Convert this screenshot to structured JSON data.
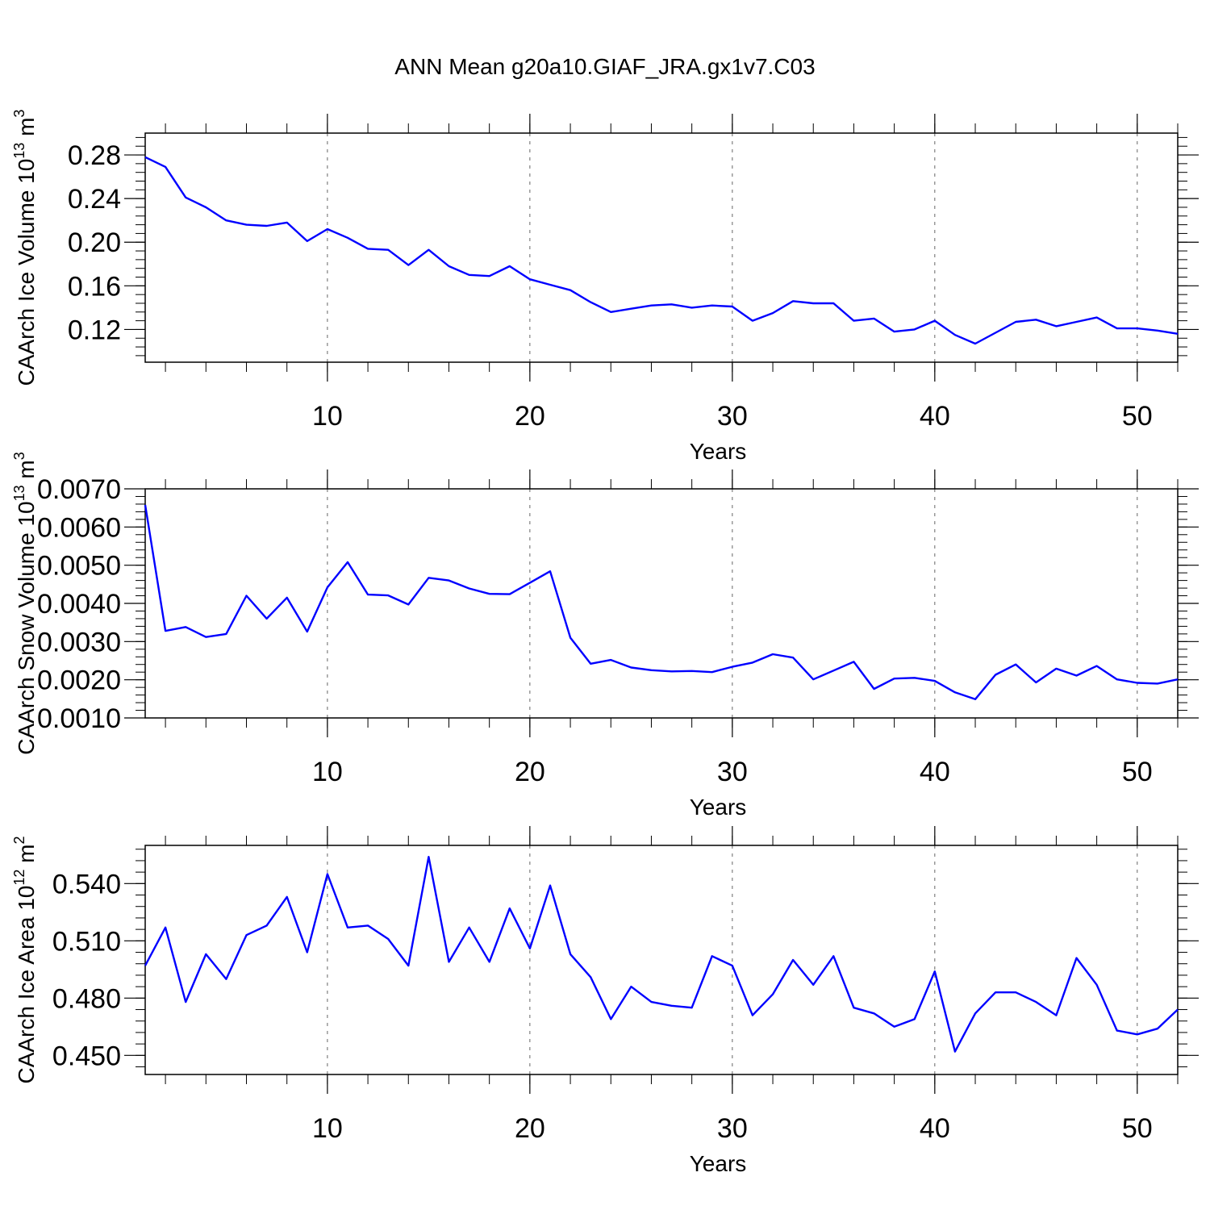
{
  "title": "ANN Mean g20a10.GIAF_JRA.gx1v7.C03",
  "colors": {
    "line": "#0000ff",
    "axis": "#000000",
    "grid": "#666666"
  },
  "chart_data": [
    {
      "type": "line",
      "xlabel": "Years",
      "ylabel": "CAArch Ice Volume 10",
      "ylabel_sup": "13",
      "ylabel_unit": "m",
      "ylabel_unit_sup": "3",
      "xlim": [
        1,
        52
      ],
      "ylim": [
        0.09,
        0.3
      ],
      "xticks": [
        10,
        20,
        30,
        40,
        50
      ],
      "xtick_labels": [
        "10",
        "20",
        "30",
        "40",
        "50"
      ],
      "yticks": [
        0.12,
        0.16,
        0.2,
        0.24,
        0.28
      ],
      "ytick_labels": [
        "0.12",
        "0.16",
        "0.20",
        "0.24",
        "0.28"
      ],
      "grid": "vertical dashed at major x ticks",
      "x": [
        1,
        2,
        3,
        4,
        5,
        6,
        7,
        8,
        9,
        10,
        11,
        12,
        13,
        14,
        15,
        16,
        17,
        18,
        19,
        20,
        21,
        22,
        23,
        24,
        25,
        26,
        27,
        28,
        29,
        30,
        31,
        32,
        33,
        34,
        35,
        36,
        37,
        38,
        39,
        40,
        41,
        42,
        43,
        44,
        45,
        46,
        47,
        48,
        49,
        50,
        51,
        52
      ],
      "values": [
        0.278,
        0.269,
        0.241,
        0.232,
        0.22,
        0.216,
        0.215,
        0.218,
        0.201,
        0.212,
        0.204,
        0.194,
        0.193,
        0.179,
        0.193,
        0.178,
        0.17,
        0.169,
        0.178,
        0.166,
        0.161,
        0.156,
        0.145,
        0.136,
        0.139,
        0.142,
        0.143,
        0.14,
        0.142,
        0.141,
        0.128,
        0.135,
        0.146,
        0.144,
        0.144,
        0.128,
        0.13,
        0.118,
        0.12,
        0.128,
        0.115,
        0.107,
        0.117,
        0.127,
        0.129,
        0.123,
        0.127,
        0.131,
        0.121,
        0.121,
        0.119,
        0.116
      ]
    },
    {
      "type": "line",
      "xlabel": "Years",
      "ylabel": "CAArch Snow Volume 10",
      "ylabel_sup": "13",
      "ylabel_unit": "m",
      "ylabel_unit_sup": "3",
      "xlim": [
        1,
        52
      ],
      "ylim": [
        0.001,
        0.007
      ],
      "xticks": [
        10,
        20,
        30,
        40,
        50
      ],
      "xtick_labels": [
        "10",
        "20",
        "30",
        "40",
        "50"
      ],
      "yticks": [
        0.001,
        0.002,
        0.003,
        0.004,
        0.005,
        0.006,
        0.007
      ],
      "ytick_labels": [
        "0.0010",
        "0.0020",
        "0.0030",
        "0.0040",
        "0.0050",
        "0.0060",
        "0.0070"
      ],
      "grid": "vertical dashed at major x ticks",
      "x": [
        1,
        2,
        3,
        4,
        5,
        6,
        7,
        8,
        9,
        10,
        11,
        12,
        13,
        14,
        15,
        16,
        17,
        18,
        19,
        20,
        21,
        22,
        23,
        24,
        25,
        26,
        27,
        28,
        29,
        30,
        31,
        32,
        33,
        34,
        35,
        36,
        37,
        38,
        39,
        40,
        41,
        42,
        43,
        44,
        45,
        46,
        47,
        48,
        49,
        50,
        51,
        52
      ],
      "values": [
        0.00658,
        0.00328,
        0.00338,
        0.00312,
        0.0032,
        0.0042,
        0.0036,
        0.00415,
        0.00326,
        0.00442,
        0.00508,
        0.00423,
        0.00421,
        0.00397,
        0.00467,
        0.0046,
        0.00439,
        0.00425,
        0.00424,
        0.00454,
        0.00484,
        0.0031,
        0.00242,
        0.00252,
        0.00232,
        0.00225,
        0.00222,
        0.00223,
        0.0022,
        0.00234,
        0.00245,
        0.00267,
        0.00258,
        0.00201,
        0.00224,
        0.00247,
        0.00176,
        0.00203,
        0.00205,
        0.00197,
        0.00167,
        0.00149,
        0.00213,
        0.0024,
        0.00193,
        0.00229,
        0.00211,
        0.00236,
        0.00201,
        0.00192,
        0.0019,
        0.00201
      ]
    },
    {
      "type": "line",
      "xlabel": "Years",
      "ylabel": "CAArch Ice Area 10",
      "ylabel_sup": "12",
      "ylabel_unit": "m",
      "ylabel_unit_sup": "2",
      "xlim": [
        1,
        52
      ],
      "ylim": [
        0.44,
        0.56
      ],
      "xticks": [
        10,
        20,
        30,
        40,
        50
      ],
      "xtick_labels": [
        "10",
        "20",
        "30",
        "40",
        "50"
      ],
      "yticks": [
        0.45,
        0.48,
        0.51,
        0.54
      ],
      "ytick_labels": [
        "0.450",
        "0.480",
        "0.510",
        "0.540"
      ],
      "grid": "vertical dashed at major x ticks",
      "x": [
        1,
        2,
        3,
        4,
        5,
        6,
        7,
        8,
        9,
        10,
        11,
        12,
        13,
        14,
        15,
        16,
        17,
        18,
        19,
        20,
        21,
        22,
        23,
        24,
        25,
        26,
        27,
        28,
        29,
        30,
        31,
        32,
        33,
        34,
        35,
        36,
        37,
        38,
        39,
        40,
        41,
        42,
        43,
        44,
        45,
        46,
        47,
        48,
        49,
        50,
        51,
        52
      ],
      "values": [
        0.497,
        0.517,
        0.478,
        0.503,
        0.49,
        0.513,
        0.518,
        0.533,
        0.504,
        0.545,
        0.517,
        0.518,
        0.511,
        0.497,
        0.554,
        0.499,
        0.517,
        0.499,
        0.527,
        0.506,
        0.539,
        0.503,
        0.491,
        0.469,
        0.486,
        0.478,
        0.476,
        0.475,
        0.502,
        0.497,
        0.471,
        0.482,
        0.5,
        0.487,
        0.502,
        0.475,
        0.472,
        0.465,
        0.469,
        0.494,
        0.452,
        0.472,
        0.483,
        0.483,
        0.478,
        0.471,
        0.501,
        0.487,
        0.463,
        0.461,
        0.464,
        0.474
      ]
    }
  ]
}
